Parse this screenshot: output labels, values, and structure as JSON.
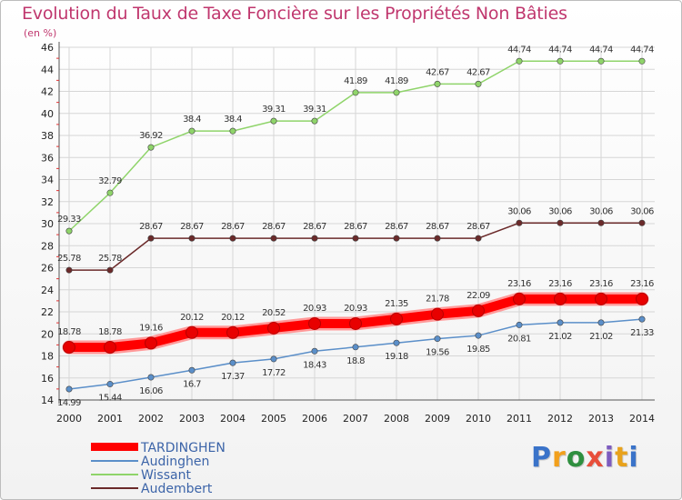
{
  "title": "Evolution du Taux de Taxe Foncière sur les Propriétés Non Bâties",
  "unit_label": "(en %)",
  "logo": {
    "text": "Proxiti",
    "letters": [
      "P",
      "r",
      "o",
      "x",
      "i",
      "t",
      "i"
    ],
    "colors": [
      "#3a73c9",
      "#f2a01c",
      "#2f8f3f",
      "#e84e3a",
      "#7d5cbf",
      "#e8a21c",
      "#3a73c9"
    ]
  },
  "chart_data": {
    "type": "line",
    "title": "Evolution du Taux de Taxe Foncière sur les Propriétés Non Bâties",
    "ylabel": "(en %)",
    "x": [
      2000,
      2001,
      2002,
      2003,
      2004,
      2005,
      2006,
      2007,
      2008,
      2009,
      2010,
      2011,
      2012,
      2013,
      2014
    ],
    "ylim": [
      14,
      46
    ],
    "yticks": [
      14,
      16,
      18,
      20,
      22,
      24,
      26,
      28,
      30,
      32,
      34,
      36,
      38,
      40,
      42,
      44,
      46
    ],
    "series": [
      {
        "name": "TARDINGHEN",
        "color": "#ff0000",
        "values": [
          18.78,
          18.78,
          19.16,
          20.12,
          20.12,
          20.52,
          20.93,
          20.93,
          21.35,
          21.78,
          22.09,
          23.16,
          23.16,
          23.16,
          23.16
        ],
        "labels": [
          "18.78",
          "18.78",
          "19.16",
          "20.12",
          "20.12",
          "20.52",
          "20.93",
          "20.93",
          "21.35",
          "21.78",
          "22.09",
          "23.16",
          "23.16",
          "23.16",
          "23.16"
        ]
      },
      {
        "name": "Audinghen",
        "color": "#5b8fc9",
        "values": [
          14.99,
          15.44,
          16.06,
          16.7,
          17.37,
          17.72,
          18.43,
          18.8,
          19.18,
          19.56,
          19.85,
          20.81,
          21.02,
          21.02,
          21.33
        ],
        "labels": [
          "14.99",
          "15.44",
          "16.06",
          "16.7",
          "17.37",
          "17.72",
          "18.43",
          "18.8",
          "19.18",
          "19.56",
          "19.85",
          "20.81",
          "21.02",
          "21.02",
          "21.33"
        ]
      },
      {
        "name": "Wissant",
        "color": "#8fd46a",
        "values": [
          29.33,
          32.79,
          36.92,
          38.4,
          38.4,
          39.31,
          39.31,
          41.89,
          41.89,
          42.67,
          42.67,
          44.74,
          44.74,
          44.74,
          44.74
        ],
        "labels": [
          "29.33",
          "32.79",
          "36.92",
          "38.4",
          "38.4",
          "39.31",
          "39.31",
          "41.89",
          "41.89",
          "42.67",
          "42.67",
          "44.74",
          "44.74",
          "44.74",
          "44.74"
        ]
      },
      {
        "name": "Audembert",
        "color": "#6b2a2a",
        "values": [
          25.78,
          25.78,
          28.67,
          28.67,
          28.67,
          28.67,
          28.67,
          28.67,
          28.67,
          28.67,
          28.67,
          30.06,
          30.06,
          30.06,
          30.06
        ],
        "labels": [
          "25.78",
          "25.78",
          "28.67",
          "28.67",
          "28.67",
          "28.67",
          "28.67",
          "28.67",
          "28.67",
          "28.67",
          "28.67",
          "30.06",
          "30.06",
          "30.06",
          "30.06"
        ]
      }
    ],
    "grid": true,
    "legend_position": "bottom-left"
  }
}
